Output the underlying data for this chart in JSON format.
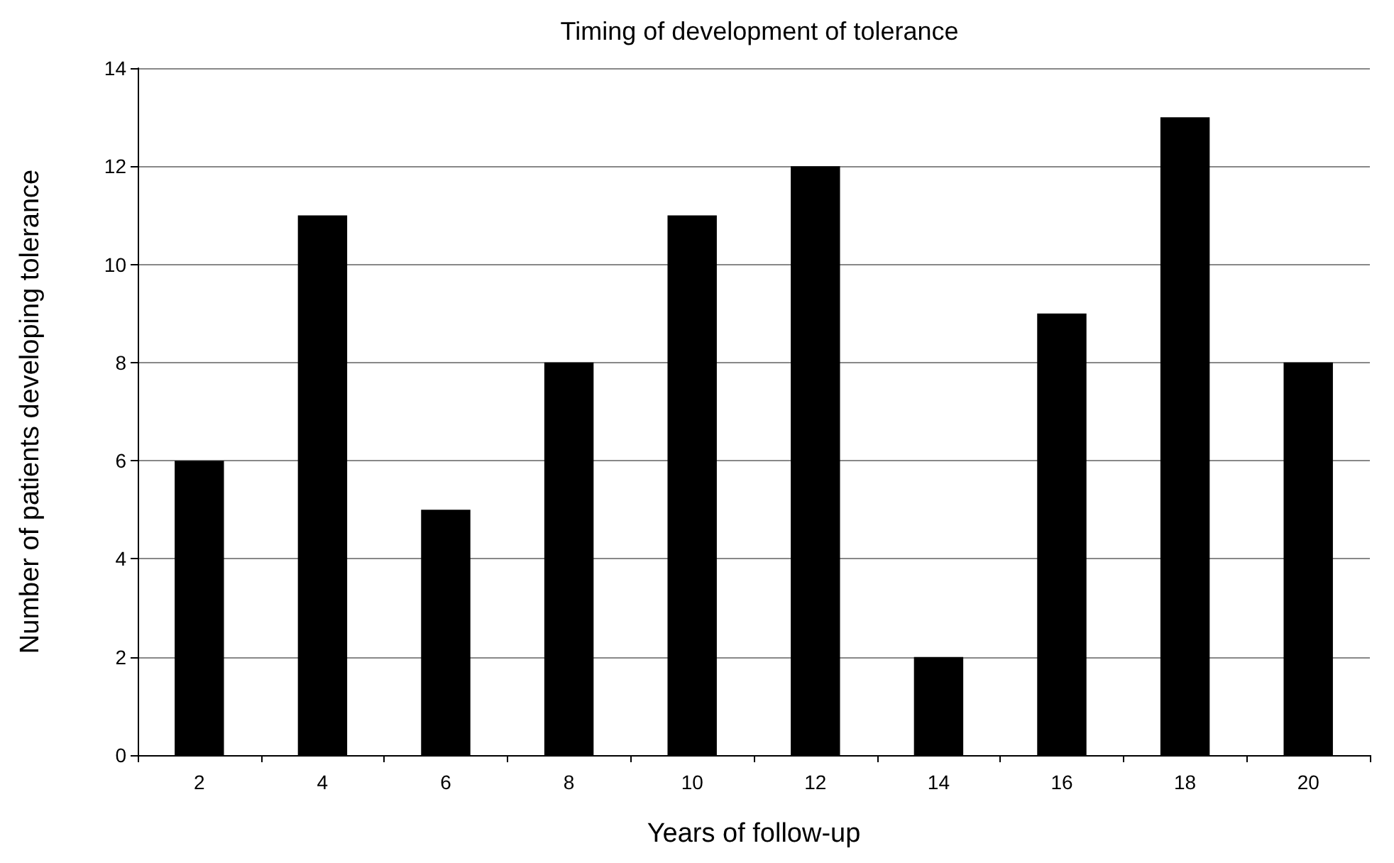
{
  "chart_data": {
    "type": "bar",
    "title": "Timing of development of tolerance",
    "xlabel": "Years of follow-up",
    "ylabel": "Number of patients developing tolerance",
    "categories": [
      "2",
      "4",
      "6",
      "8",
      "10",
      "12",
      "14",
      "16",
      "18",
      "20"
    ],
    "values": [
      6,
      11,
      5,
      8,
      11,
      12,
      2,
      9,
      13,
      8
    ],
    "color": "#000000",
    "ylim": [
      0,
      14
    ],
    "yticks": [
      0,
      2,
      4,
      6,
      8,
      10,
      12,
      14
    ],
    "grid": "y"
  }
}
